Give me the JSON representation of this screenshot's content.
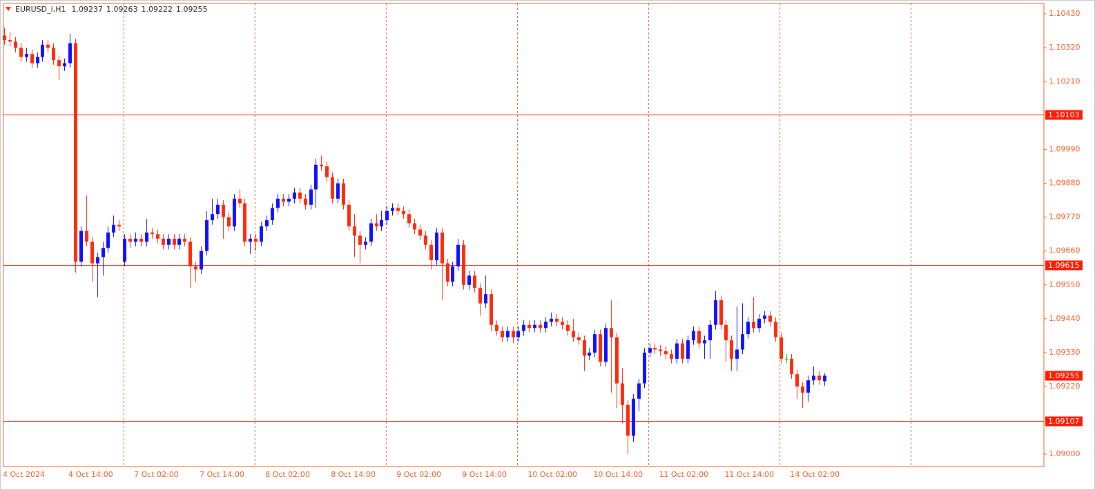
{
  "chart_data": {
    "type": "candlestick",
    "title": "EURUSD_i,H1",
    "colors": {
      "up": "#1010ff",
      "down": "#ff2a0a",
      "doji": "#00c800",
      "level": "#ff1a00",
      "axis": "#f05a24"
    },
    "categories": [
      "4 Oct 2024",
      null,
      null,
      null,
      null,
      null,
      null,
      null,
      null,
      null,
      null,
      null,
      "4 Oct 14:00",
      null,
      null,
      null,
      null,
      null,
      null,
      null,
      null,
      null,
      null,
      null,
      "7 Oct 02:00",
      null,
      null,
      null,
      null,
      null,
      null,
      null,
      null,
      null,
      null,
      null,
      "7 Oct 14:00",
      null,
      null,
      null,
      null,
      null,
      null,
      null,
      null,
      null,
      null,
      null,
      "8 Oct 02:00",
      null,
      null,
      null,
      null,
      null,
      null,
      null,
      null,
      null,
      null,
      null,
      "8 Oct 14:00",
      null,
      null,
      null,
      null,
      null,
      null,
      null,
      null,
      null,
      null,
      null,
      "9 Oct 02:00",
      null,
      null,
      null,
      null,
      null,
      null,
      null,
      null,
      null,
      null,
      null,
      "9 Oct 14:00",
      null,
      null,
      null,
      null,
      null,
      null,
      null,
      null,
      null,
      null,
      null,
      "10 Oct 02:00",
      null,
      null,
      null,
      null,
      null,
      null,
      null,
      null,
      null,
      null,
      null,
      "10 Oct 14:00",
      null,
      null,
      null,
      null,
      null,
      null,
      null,
      null,
      null,
      null,
      null,
      "11 Oct 02:00",
      null,
      null,
      null,
      null,
      null,
      null,
      null,
      null,
      null,
      null,
      null,
      "11 Oct 14:00",
      null,
      null,
      null,
      null,
      null,
      null,
      null,
      null,
      null,
      null,
      null,
      "14 Oct 02:00",
      null,
      null,
      null,
      null,
      null,
      null
    ],
    "open": [
      1.1036,
      1.10345,
      1.1034,
      1.1032,
      1.1029,
      1.103,
      1.1027,
      1.1029,
      1.1033,
      1.1032,
      1.1028,
      1.1026,
      1.1027,
      1.10335,
      1.09625,
      1.09725,
      1.0969,
      1.0962,
      1.0964,
      1.0967,
      1.0972,
      1.09745,
      1.09625,
      1.097,
      1.0969,
      1.097,
      1.0969,
      1.0972,
      1.09715,
      1.097,
      1.0968,
      1.097,
      1.0968,
      1.097,
      1.0969,
      1.0961,
      1.096,
      1.0966,
      1.0976,
      1.0978,
      1.0981,
      1.0977,
      1.0974,
      1.0983,
      1.09815,
      1.0969,
      1.097,
      1.0969,
      1.0974,
      1.0976,
      1.098,
      1.0983,
      1.0982,
      1.0983,
      1.0985,
      1.0983,
      1.0981,
      1.0986,
      1.0994,
      1.09935,
      1.099,
      1.0983,
      1.0988,
      1.0981,
      1.0974,
      1.0971,
      1.0968,
      1.0969,
      1.0975,
      1.0974,
      1.0976,
      1.0979,
      1.098,
      1.0979,
      1.0978,
      1.0975,
      1.0973,
      1.0971,
      1.0968,
      1.0963,
      1.0972,
      1.0962,
      1.0956,
      1.0961,
      1.0968,
      1.0955,
      1.0958,
      1.0954,
      1.0949,
      1.0952,
      1.0942,
      1.094,
      1.0938,
      1.094,
      1.0938,
      1.094,
      1.0942,
      1.0941,
      1.0942,
      1.0941,
      1.0943,
      1.0944,
      1.0943,
      1.0942,
      1.094,
      1.0938,
      1.0937,
      1.0932,
      1.0933,
      1.0939,
      1.093,
      1.0941,
      1.0938,
      1.0923,
      1.0916,
      1.0906,
      1.0918,
      1.0923,
      1.0933,
      1.09345,
      1.0934,
      1.09335,
      1.09325,
      1.0931,
      1.0936,
      1.0931,
      1.0937,
      1.094,
      1.0936,
      1.0937,
      1.0942,
      1.095,
      1.0942,
      1.0937,
      1.0931,
      1.0934,
      1.0939,
      1.0943,
      1.0941,
      1.0944,
      1.0945,
      1.0943,
      1.0938,
      1.0931,
      1.0931,
      1.0926,
      1.0922,
      1.092,
      1.0924,
      1.09255,
      1.09237
    ],
    "high": [
      1.10385,
      1.1037,
      1.10355,
      1.10335,
      1.1032,
      1.10315,
      1.10305,
      1.10345,
      1.10345,
      1.10335,
      1.10295,
      1.10285,
      1.10365,
      1.1035,
      1.0974,
      1.0984,
      1.09705,
      1.09655,
      1.0969,
      1.0974,
      1.09775,
      1.0976,
      1.09715,
      1.09715,
      1.0972,
      1.09715,
      1.09765,
      1.09735,
      1.0973,
      1.09715,
      1.09715,
      1.09715,
      1.09715,
      1.09715,
      1.09705,
      1.09625,
      1.09675,
      1.0979,
      1.0983,
      1.0983,
      1.09825,
      1.09785,
      1.09845,
      1.0986,
      1.0983,
      1.09715,
      1.09715,
      1.09755,
      1.09775,
      1.09815,
      1.09845,
      1.09845,
      1.09845,
      1.09865,
      1.09865,
      1.09845,
      1.09875,
      1.0996,
      1.0997,
      1.0995,
      1.09915,
      1.09895,
      1.09895,
      1.09825,
      1.0978,
      1.09725,
      1.09705,
      1.09765,
      1.0978,
      1.0979,
      1.09805,
      1.09815,
      1.09815,
      1.09805,
      1.09795,
      1.09765,
      1.09745,
      1.09725,
      1.09695,
      1.09735,
      1.09735,
      1.09635,
      1.09625,
      1.097,
      1.09695,
      1.09595,
      1.09595,
      1.09555,
      1.0958,
      1.09535,
      1.09435,
      1.09415,
      1.09415,
      1.09415,
      1.09415,
      1.09435,
      1.09435,
      1.09435,
      1.09435,
      1.09445,
      1.0946,
      1.09455,
      1.09445,
      1.09435,
      1.0944,
      1.09395,
      1.09385,
      1.09345,
      1.09405,
      1.09405,
      1.09425,
      1.095,
      1.09395,
      1.0928,
      1.09175,
      1.09195,
      1.09245,
      1.09345,
      1.0936,
      1.0936,
      1.09355,
      1.0935,
      1.0934,
      1.09375,
      1.09375,
      1.09385,
      1.09415,
      1.09415,
      1.09385,
      1.09435,
      1.0953,
      1.09515,
      1.09435,
      1.09385,
      1.0948,
      1.0949,
      1.09445,
      1.0951,
      1.09455,
      1.09465,
      1.09465,
      1.09445,
      1.09395,
      1.09325,
      1.09325,
      1.09275,
      1.09235,
      1.09255,
      1.09285,
      1.0927,
      1.09263
    ],
    "low": [
      1.1033,
      1.10325,
      1.10305,
      1.10275,
      1.10275,
      1.10255,
      1.10255,
      1.10275,
      1.10305,
      1.10265,
      1.10215,
      1.10245,
      1.10255,
      1.0959,
      1.0961,
      1.09675,
      1.0956,
      1.0951,
      1.0958,
      1.09655,
      1.09705,
      1.09725,
      1.0961,
      1.0967,
      1.09675,
      1.09675,
      1.09675,
      1.097,
      1.09685,
      1.09665,
      1.09665,
      1.09665,
      1.09665,
      1.09675,
      1.0954,
      1.0956,
      1.09585,
      1.09645,
      1.09745,
      1.09765,
      1.097,
      1.09725,
      1.09725,
      1.098,
      1.09675,
      1.0965,
      1.0966,
      1.09675,
      1.09725,
      1.09745,
      1.09785,
      1.09805,
      1.09805,
      1.09815,
      1.09815,
      1.09795,
      1.09795,
      1.098,
      1.0992,
      1.09885,
      1.09815,
      1.09815,
      1.09795,
      1.09725,
      1.0964,
      1.0962,
      1.09665,
      1.09675,
      1.09725,
      1.09725,
      1.09745,
      1.09775,
      1.09775,
      1.09765,
      1.09735,
      1.09715,
      1.09695,
      1.09665,
      1.096,
      1.09615,
      1.095,
      1.09545,
      1.09545,
      1.09595,
      1.09535,
      1.09535,
      1.09525,
      1.0945,
      1.09475,
      1.094,
      1.09385,
      1.09365,
      1.09365,
      1.0936,
      1.09365,
      1.09385,
      1.09395,
      1.09395,
      1.09395,
      1.09395,
      1.09415,
      1.09415,
      1.09405,
      1.09385,
      1.09365,
      1.09355,
      1.0927,
      1.09305,
      1.09315,
      1.09285,
      1.09285,
      1.092,
      1.0915,
      1.091,
      1.09,
      1.0904,
      1.0914,
      1.09215,
      1.09315,
      1.09325,
      1.0932,
      1.0931,
      1.09295,
      1.09295,
      1.09295,
      1.09295,
      1.09355,
      1.09345,
      1.0931,
      1.0931,
      1.09405,
      1.09405,
      1.093,
      1.0927,
      1.0927,
      1.09325,
      1.09375,
      1.09395,
      1.09395,
      1.09425,
      1.09415,
      1.09365,
      1.09295,
      1.09295,
      1.09245,
      1.0918,
      1.0915,
      1.0917,
      1.09225,
      1.09225,
      1.09222
    ],
    "close": [
      1.10345,
      1.1034,
      1.1032,
      1.1029,
      1.103,
      1.1027,
      1.1029,
      1.1033,
      1.1032,
      1.1028,
      1.1026,
      1.1027,
      1.10335,
      1.09625,
      1.09725,
      1.0969,
      1.0962,
      1.0964,
      1.0967,
      1.0972,
      1.09745,
      1.0974,
      1.097,
      1.0969,
      1.097,
      1.0969,
      1.0972,
      1.09715,
      1.097,
      1.0968,
      1.097,
      1.0968,
      1.097,
      1.0969,
      1.0961,
      1.096,
      1.0966,
      1.0976,
      1.0978,
      1.0981,
      1.0977,
      1.0974,
      1.0983,
      1.09815,
      1.0969,
      1.097,
      1.0969,
      1.0974,
      1.0976,
      1.098,
      1.0983,
      1.0982,
      1.0983,
      1.0985,
      1.0983,
      1.0981,
      1.0986,
      1.0994,
      1.09935,
      1.099,
      1.0983,
      1.0988,
      1.0981,
      1.0974,
      1.0971,
      1.0968,
      1.0969,
      1.0975,
      1.0974,
      1.0976,
      1.0979,
      1.098,
      1.0979,
      1.0978,
      1.0975,
      1.0973,
      1.0971,
      1.0968,
      1.0963,
      1.0972,
      1.0962,
      1.0956,
      1.0961,
      1.0968,
      1.0955,
      1.0958,
      1.0954,
      1.0949,
      1.0952,
      1.0942,
      1.094,
      1.0938,
      1.094,
      1.0938,
      1.094,
      1.0942,
      1.0941,
      1.0942,
      1.0941,
      1.0943,
      1.0944,
      1.0943,
      1.0942,
      1.094,
      1.0938,
      1.0937,
      1.0932,
      1.0933,
      1.0939,
      1.093,
      1.0941,
      1.0938,
      1.0923,
      1.0916,
      1.0906,
      1.0918,
      1.0923,
      1.0933,
      1.09345,
      1.0934,
      1.09335,
      1.09325,
      1.0931,
      1.0936,
      1.0931,
      1.0937,
      1.094,
      1.0936,
      1.0937,
      1.0942,
      1.095,
      1.0942,
      1.0937,
      1.0931,
      1.0934,
      1.0939,
      1.0943,
      1.0941,
      1.0944,
      1.0945,
      1.0943,
      1.0938,
      1.0931,
      1.0931,
      1.0926,
      1.0922,
      1.092,
      1.0924,
      1.09255,
      1.0924,
      1.09255
    ],
    "levels": [
      1.10103,
      1.09615,
      1.09107
    ],
    "ylim": [
      1.0896,
      1.10464
    ],
    "yticks": [
      {
        "value": 1.09,
        "label": "1.09000"
      },
      {
        "value": 1.0922,
        "label": "1.09220"
      },
      {
        "value": 1.0933,
        "label": "1.09330"
      },
      {
        "value": 1.0944,
        "label": "1.09440"
      },
      {
        "value": 1.0955,
        "label": "1.09550"
      },
      {
        "value": 1.0966,
        "label": "1.09660"
      },
      {
        "value": 1.0977,
        "label": "1.09770"
      },
      {
        "value": 1.0988,
        "label": "1.09880"
      },
      {
        "value": 1.0999,
        "label": "1.09990"
      },
      {
        "value": 1.1021,
        "label": "1.10210"
      },
      {
        "value": 1.1032,
        "label": "1.10320"
      },
      {
        "value": 1.1043,
        "label": "1.10430"
      }
    ]
  }
}
